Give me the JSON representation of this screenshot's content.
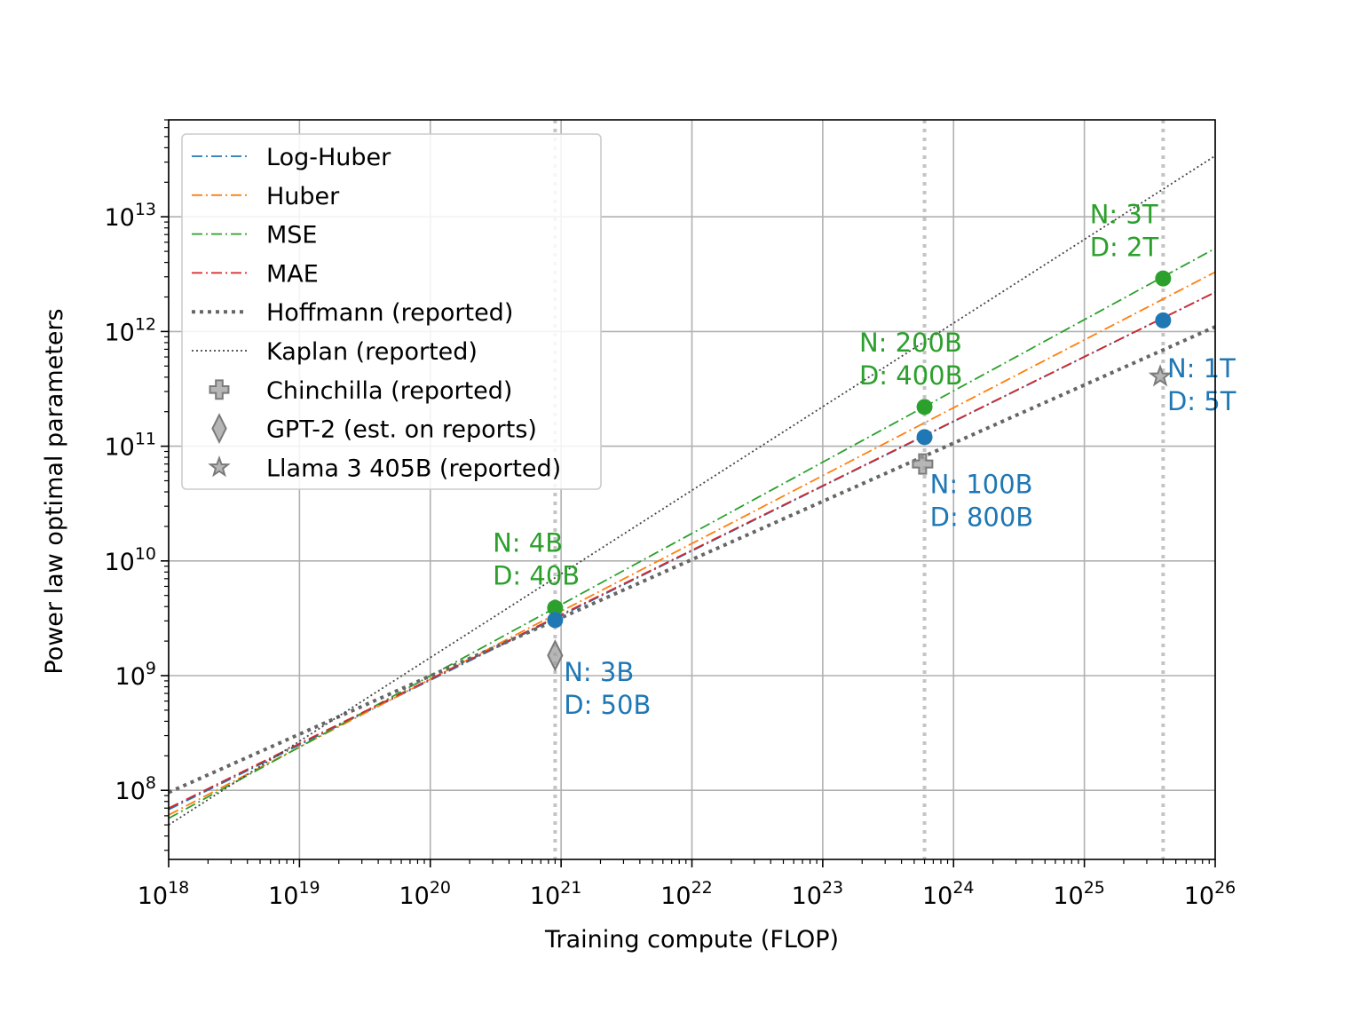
{
  "chart_data": {
    "type": "line",
    "title": "",
    "xlabel": "Training compute (FLOP)",
    "ylabel": "Power law optimal parameters",
    "xscale": "log",
    "yscale": "log",
    "xlim": [
      1e+18,
      1e+26
    ],
    "ylim": [
      25000000.0,
      70000000000000.0
    ],
    "grid": true,
    "legend_position": "upper-left",
    "x_ticks": [
      {
        "value": 1e+18,
        "base": "10",
        "exp": "18"
      },
      {
        "value": 1e+19,
        "base": "10",
        "exp": "19"
      },
      {
        "value": 1e+20,
        "base": "10",
        "exp": "20"
      },
      {
        "value": 1e+21,
        "base": "10",
        "exp": "21"
      },
      {
        "value": 1e+22,
        "base": "10",
        "exp": "22"
      },
      {
        "value": 1e+23,
        "base": "10",
        "exp": "23"
      },
      {
        "value": 1e+24,
        "base": "10",
        "exp": "24"
      },
      {
        "value": 1e+25,
        "base": "10",
        "exp": "25"
      },
      {
        "value": 1e+26,
        "base": "10",
        "exp": "26"
      }
    ],
    "y_ticks": [
      {
        "value": 100000000.0,
        "base": "10",
        "exp": "8"
      },
      {
        "value": 1000000000.0,
        "base": "10",
        "exp": "9"
      },
      {
        "value": 10000000000.0,
        "base": "10",
        "exp": "10"
      },
      {
        "value": 100000000000.0,
        "base": "10",
        "exp": "11"
      },
      {
        "value": 1000000000000.0,
        "base": "10",
        "exp": "12"
      },
      {
        "value": 10000000000000.0,
        "base": "10",
        "exp": "13"
      }
    ],
    "reference_compute": [
      9e+20,
      6e+23,
      4e+25
    ],
    "series": [
      {
        "name": "Log-Huber",
        "color": "#1f77b4",
        "style": "dashdot",
        "x": [
          1e+18,
          1e+26
        ],
        "y": [
          68000000.0,
          2200000000000.0
        ]
      },
      {
        "name": "Huber",
        "color": "#ff7f0e",
        "style": "dashdot",
        "x": [
          1e+18,
          1e+26
        ],
        "y": [
          61000000.0,
          3300000000000.0
        ]
      },
      {
        "name": "MSE",
        "color": "#2ca02c",
        "style": "dashdot",
        "x": [
          1e+18,
          1e+26
        ],
        "y": [
          57000000.0,
          5300000000000.0
        ]
      },
      {
        "name": "MAE",
        "color": "#d62728",
        "style": "dashdot",
        "x": [
          1e+18,
          1e+26
        ],
        "y": [
          70000000.0,
          2200000000000.0
        ]
      },
      {
        "name": "Hoffmann (reported)",
        "color": "#666666",
        "style": "dotted-thick",
        "x": [
          1e+18,
          1e+26
        ],
        "y": [
          96000000.0,
          1100000000000.0
        ]
      },
      {
        "name": "Kaplan (reported)",
        "color": "#444444",
        "style": "dotted-thin",
        "x": [
          1e+18,
          1e+26
        ],
        "y": [
          50000000.0,
          34000000000000.0
        ]
      }
    ],
    "markers": [
      {
        "name": "Chinchilla (reported)",
        "shape": "plus",
        "x": 5.8e+23,
        "y": 70000000000.0
      },
      {
        "name": "GPT-2 (est. on reports)",
        "shape": "diamond",
        "x": 9e+20,
        "y": 1500000000.0
      },
      {
        "name": "Llama 3 405B (reported)",
        "shape": "star",
        "x": 3.8e+25,
        "y": 405000000000.0
      }
    ],
    "points": [
      {
        "series": "MSE",
        "color": "#2ca02c",
        "x": 9e+20,
        "y": 3900000000.0
      },
      {
        "series": "Log-Huber",
        "color": "#1f77b4",
        "x": 9e+20,
        "y": 3050000000.0
      },
      {
        "series": "MSE",
        "color": "#2ca02c",
        "x": 6e+23,
        "y": 220000000000.0
      },
      {
        "series": "Log-Huber",
        "color": "#1f77b4",
        "x": 6e+23,
        "y": 120000000000.0
      },
      {
        "series": "MSE",
        "color": "#2ca02c",
        "x": 4e+25,
        "y": 2900000000000.0
      },
      {
        "series": "Log-Huber",
        "color": "#1f77b4",
        "x": 4e+25,
        "y": 1250000000000.0
      }
    ],
    "annotations": [
      {
        "id": "g1",
        "color": "#2ca02c",
        "line1": "N: 4B",
        "line2": "D: 40B",
        "x": 3e+20,
        "y": 12000000000.0
      },
      {
        "id": "b1",
        "color": "#1f77b4",
        "line1": "N: 3B",
        "line2": "D: 50B",
        "x": 1.05e+21,
        "y": 900000000.0
      },
      {
        "id": "g2",
        "color": "#2ca02c",
        "line1": "N: 200B",
        "line2": "D: 400B",
        "x": 1.9e+23,
        "y": 670000000000.0
      },
      {
        "id": "b2",
        "color": "#1f77b4",
        "line1": "N: 100B",
        "line2": "D: 800B",
        "x": 6.6e+23,
        "y": 39000000000.0
      },
      {
        "id": "g3",
        "color": "#2ca02c",
        "line1": "N: 3T",
        "line2": "D: 2T",
        "x": 1.1e+25,
        "y": 8800000000000.0
      },
      {
        "id": "b3",
        "color": "#1f77b4",
        "line1": "N: 1T",
        "line2": "D: 5T",
        "x": 4.3e+25,
        "y": 400000000000.0
      }
    ]
  }
}
